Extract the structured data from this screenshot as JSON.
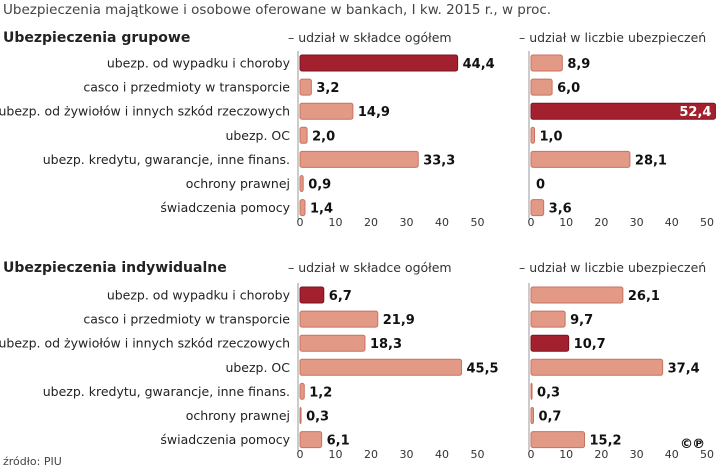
{
  "title": "Ubezpieczenia majątkowe i osobowe oferowane w bankach, I kw. 2015 r., w proc.",
  "source": "źródło: PIU",
  "license_mark": "©℗",
  "colors": {
    "normal_fill": "#e29a86",
    "normal_stroke": "#c97260",
    "highlight_fill": "#a3202e",
    "highlight_stroke": "#7a1420",
    "axis": "#999999",
    "text": "#222222"
  },
  "chart_data": [
    {
      "type": "bar",
      "group": "Ubezpieczenia grupowe",
      "categories": [
        "ubezp. od wypadku i choroby",
        "casco i przedmioty w transporcie",
        "ubezp. od żywiołów i innych szkód rzeczowych",
        "ubezp. OC",
        "ubezp. kredytu, gwarancje, inne finans.",
        "ochrony prawnej",
        "świadczenia pomocy"
      ],
      "series": [
        {
          "name": "– udział w składce ogółem",
          "values": [
            44.4,
            3.2,
            14.9,
            2.0,
            33.3,
            0.9,
            1.4
          ],
          "labels": [
            "44,4",
            "3,2",
            "14,9",
            "2,0",
            "33,3",
            "0,9",
            "1,4"
          ],
          "highlight_index": 0
        },
        {
          "name": "– udział w liczbie ubezpieczeń",
          "values": [
            8.9,
            6.0,
            52.4,
            1.0,
            28.1,
            0,
            3.6
          ],
          "labels": [
            "8,9",
            "6,0",
            "52,4",
            "1,0",
            "28,1",
            "0",
            "3,6"
          ],
          "highlight_index": 2
        }
      ],
      "xlim": [
        0,
        50
      ],
      "xticks": [
        "0",
        "10",
        "20",
        "30",
        "40",
        "50"
      ]
    },
    {
      "type": "bar",
      "group": "Ubezpieczenia indywidualne",
      "categories": [
        "ubezp. od wypadku i choroby",
        "casco i przedmioty w transporcie",
        "ubezp. od żywiołów i innych szkód rzeczowych",
        "ubezp. OC",
        "ubezp. kredytu, gwarancje, inne finans.",
        "ochrony prawnej",
        "świadczenia pomocy"
      ],
      "series": [
        {
          "name": "– udział w składce ogółem",
          "values": [
            6.7,
            21.9,
            18.3,
            45.5,
            1.2,
            0.3,
            6.1
          ],
          "labels": [
            "6,7",
            "21,9",
            "18,3",
            "45,5",
            "1,2",
            "0,3",
            "6,1"
          ],
          "highlight_index": 0
        },
        {
          "name": "– udział w liczbie ubezpieczeń",
          "values": [
            26.1,
            9.7,
            10.7,
            37.4,
            0.3,
            0.7,
            15.2
          ],
          "labels": [
            "26,1",
            "9,7",
            "10,7",
            "37,4",
            "0,3",
            "0,7",
            "15,2"
          ],
          "highlight_index": 2
        }
      ],
      "xlim": [
        0,
        50
      ],
      "xticks": [
        "0",
        "10",
        "20",
        "30",
        "40",
        "50"
      ]
    }
  ]
}
